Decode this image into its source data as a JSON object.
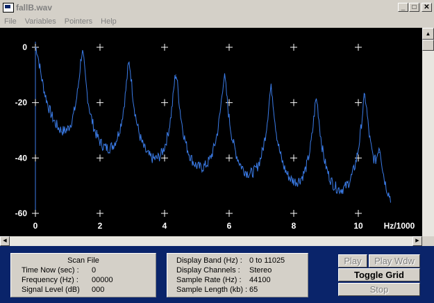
{
  "window": {
    "title": "fallB.wav",
    "minimize": "_",
    "maximize": "□",
    "close": "✕"
  },
  "menu": [
    "File",
    "Variables",
    "Pointers",
    "Help"
  ],
  "chart_data": {
    "type": "line",
    "title": "",
    "xlabel": "Hz/1000",
    "ylabel": "",
    "xlim": [
      0,
      11.025
    ],
    "ylim": [
      -60,
      0
    ],
    "x_ticks": [
      "0",
      "2",
      "4",
      "6",
      "8",
      "10"
    ],
    "y_ticks": [
      "0",
      "-20",
      "-40",
      "-60"
    ],
    "grid": "cross markers at every 2 kHz / 20 dB",
    "line_color": "#3b7ce8",
    "background": "#000000",
    "peaks": [
      {
        "x": 0.0,
        "y": 0
      },
      {
        "x": 1.45,
        "y": -2
      },
      {
        "x": 2.9,
        "y": -6
      },
      {
        "x": 4.35,
        "y": -10
      },
      {
        "x": 5.85,
        "y": -11
      },
      {
        "x": 7.3,
        "y": -15
      },
      {
        "x": 8.7,
        "y": -19
      },
      {
        "x": 10.2,
        "y": -18
      },
      {
        "x": 10.65,
        "y": -38
      }
    ],
    "floor": -60
  },
  "scan_file": {
    "title": "Scan File",
    "time_label": "Time Now (sec) :",
    "time_value": "0",
    "freq_label": "Frequency (Hz) :",
    "freq_value": "00000",
    "level_label": "Signal Level (dB)",
    "level_value": "000"
  },
  "info": {
    "band_label": "Display Band (Hz) :",
    "band_value": "0 to 11025",
    "channels_label": "Display Channels :",
    "channels_value": "Stereo",
    "rate_label": "Sample Rate (Hz) :",
    "rate_value": "44100",
    "length_label": "Sample Length (kb) :",
    "length_value": "65"
  },
  "buttons": {
    "play": "Play",
    "play_wdw": "Play Wdw",
    "toggle_grid": "Toggle Grid",
    "stop": "Stop"
  }
}
